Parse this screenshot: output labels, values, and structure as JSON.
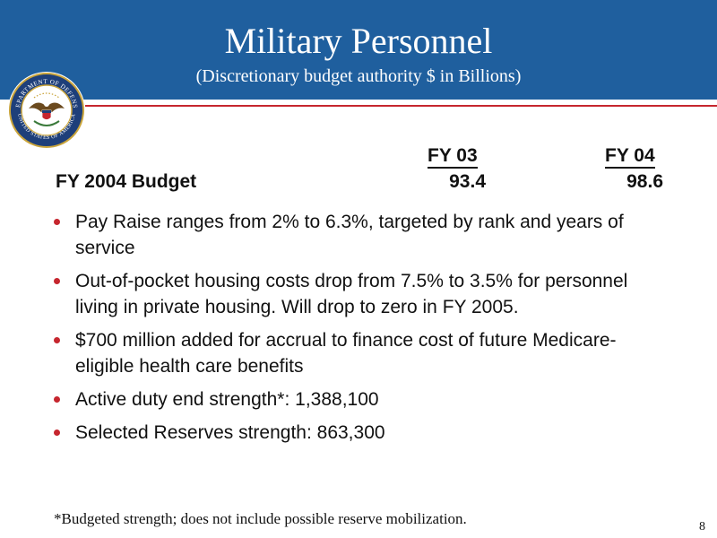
{
  "header": {
    "title": "Military Personnel",
    "subtitle": "(Discretionary budget authority $ in Billions)"
  },
  "seal": {
    "icon": "department-of-defense-seal",
    "top_text": "DEPARTMENT OF DEFENSE",
    "bottom_text": "UNITED STATES OF AMERICA"
  },
  "budget_table": {
    "columns": [
      "FY 03",
      "FY 04"
    ],
    "row_label": "FY 2004 Budget",
    "values": [
      "93.4",
      "98.6"
    ]
  },
  "bullets": [
    "Pay Raise ranges from 2% to 6.3%, targeted by rank and years of service",
    "Out-of-pocket housing costs drop from 7.5% to 3.5% for personnel living in private housing.  Will drop to zero in FY 2005.",
    "$700 million added for accrual to finance cost of future Medicare-eligible health care benefits",
    "Active duty end strength*:  1,388,100",
    "Selected Reserves strength:   863,300"
  ],
  "footnote": "*Budgeted strength; does not include possible reserve mobilization.",
  "page_number": "8",
  "colors": {
    "header_blue": "#1f5f9e",
    "accent_red": "#c6262e",
    "text": "#111111"
  }
}
